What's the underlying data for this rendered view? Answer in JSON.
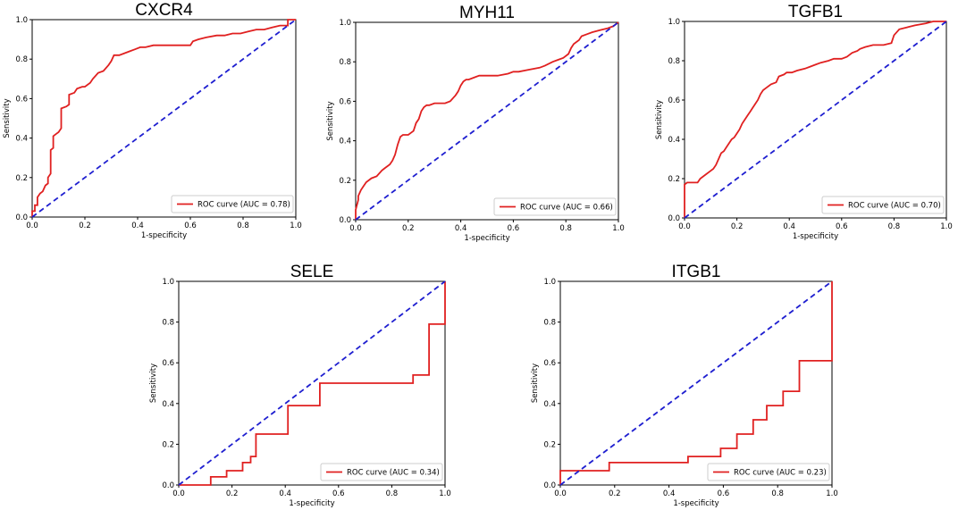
{
  "figure": {
    "diagonal_color": "#1f1fd0",
    "roc_color": "#e02020"
  },
  "chart_data": [
    {
      "type": "line",
      "title": "CXCR4",
      "xlabel": "1-specificity",
      "ylabel": "Sensitivity",
      "xlim": [
        0,
        1
      ],
      "ylim": [
        0,
        1
      ],
      "xticks": [
        "0.0",
        "0.2",
        "0.4",
        "0.6",
        "0.8",
        "1.0"
      ],
      "yticks": [
        "0.0",
        "0.2",
        "0.4",
        "0.6",
        "0.8",
        "1.0"
      ],
      "legend": "ROC curve (AUC = 0.78)",
      "legend_position": "lower-right",
      "series": [
        {
          "name": "ROC curve",
          "style": "solid",
          "x": [
            0,
            0,
            0.01,
            0.01,
            0.02,
            0.02,
            0.03,
            0.04,
            0.05,
            0.06,
            0.06,
            0.07,
            0.07,
            0.08,
            0.08,
            0.09,
            0.1,
            0.11,
            0.11,
            0.13,
            0.14,
            0.14,
            0.16,
            0.17,
            0.19,
            0.2,
            0.22,
            0.23,
            0.25,
            0.27,
            0.29,
            0.3,
            0.31,
            0.33,
            0.35,
            0.37,
            0.39,
            0.41,
            0.43,
            0.46,
            0.48,
            0.52,
            0.56,
            0.6,
            0.61,
            0.63,
            0.66,
            0.7,
            0.73,
            0.76,
            0.79,
            0.82,
            0.85,
            0.88,
            0.91,
            0.94,
            0.96,
            0.97,
            0.97,
            1.0
          ],
          "y": [
            0,
            0.03,
            0.03,
            0.06,
            0.06,
            0.1,
            0.12,
            0.13,
            0.16,
            0.17,
            0.2,
            0.22,
            0.34,
            0.35,
            0.41,
            0.42,
            0.43,
            0.45,
            0.55,
            0.56,
            0.57,
            0.62,
            0.63,
            0.65,
            0.66,
            0.66,
            0.68,
            0.7,
            0.73,
            0.74,
            0.77,
            0.79,
            0.82,
            0.82,
            0.83,
            0.84,
            0.85,
            0.86,
            0.86,
            0.87,
            0.87,
            0.87,
            0.87,
            0.87,
            0.89,
            0.9,
            0.91,
            0.92,
            0.92,
            0.93,
            0.93,
            0.94,
            0.95,
            0.95,
            0.96,
            0.97,
            0.97,
            0.97,
            1.0,
            1.0
          ]
        },
        {
          "name": "chance",
          "style": "dashed",
          "x": [
            0,
            1
          ],
          "y": [
            0,
            1
          ]
        }
      ]
    },
    {
      "type": "line",
      "title": "MYH11",
      "xlabel": "1-specificity",
      "ylabel": "Sensitivity",
      "xlim": [
        0,
        1
      ],
      "ylim": [
        0,
        1
      ],
      "xticks": [
        "0.0",
        "0.2",
        "0.4",
        "0.6",
        "0.8",
        "1.0"
      ],
      "yticks": [
        "0.0",
        "0.2",
        "0.4",
        "0.6",
        "0.8",
        "1.0"
      ],
      "legend": "ROC curve (AUC = 0.66)",
      "legend_position": "lower-right",
      "series": [
        {
          "name": "ROC curve",
          "style": "solid",
          "x": [
            0,
            0,
            0.01,
            0.01,
            0.02,
            0.03,
            0.04,
            0.06,
            0.08,
            0.1,
            0.11,
            0.13,
            0.14,
            0.15,
            0.16,
            0.17,
            0.18,
            0.2,
            0.21,
            0.22,
            0.23,
            0.24,
            0.25,
            0.26,
            0.27,
            0.28,
            0.3,
            0.32,
            0.34,
            0.36,
            0.38,
            0.39,
            0.4,
            0.41,
            0.42,
            0.43,
            0.45,
            0.47,
            0.5,
            0.54,
            0.58,
            0.6,
            0.62,
            0.66,
            0.7,
            0.72,
            0.75,
            0.77,
            0.79,
            0.81,
            0.82,
            0.83,
            0.85,
            0.86,
            0.88,
            0.9,
            0.93,
            0.96,
            0.98,
            1.0
          ],
          "y": [
            0,
            0.05,
            0.1,
            0.12,
            0.15,
            0.17,
            0.19,
            0.21,
            0.22,
            0.25,
            0.26,
            0.28,
            0.3,
            0.33,
            0.38,
            0.42,
            0.43,
            0.43,
            0.44,
            0.45,
            0.49,
            0.51,
            0.55,
            0.57,
            0.58,
            0.58,
            0.59,
            0.59,
            0.59,
            0.6,
            0.63,
            0.65,
            0.68,
            0.7,
            0.71,
            0.71,
            0.72,
            0.73,
            0.73,
            0.73,
            0.74,
            0.75,
            0.75,
            0.76,
            0.77,
            0.78,
            0.8,
            0.81,
            0.82,
            0.84,
            0.87,
            0.89,
            0.91,
            0.93,
            0.94,
            0.95,
            0.96,
            0.97,
            0.98,
            1.0
          ]
        },
        {
          "name": "chance",
          "style": "dashed",
          "x": [
            0,
            1
          ],
          "y": [
            0,
            1
          ]
        }
      ]
    },
    {
      "type": "line",
      "title": "TGFB1",
      "xlabel": "1-specificity",
      "ylabel": "Sensitivity",
      "xlim": [
        0,
        1
      ],
      "ylim": [
        0,
        1
      ],
      "xticks": [
        "0.0",
        "0.2",
        "0.4",
        "0.6",
        "0.8",
        "1.0"
      ],
      "yticks": [
        "0.0",
        "0.2",
        "0.4",
        "0.6",
        "0.8",
        "1.0"
      ],
      "legend": "ROC curve (AUC = 0.70)",
      "legend_position": "lower-right",
      "series": [
        {
          "name": "ROC curve",
          "style": "solid",
          "x": [
            0,
            0,
            0.01,
            0.05,
            0.06,
            0.08,
            0.1,
            0.11,
            0.12,
            0.13,
            0.14,
            0.15,
            0.16,
            0.17,
            0.18,
            0.19,
            0.2,
            0.21,
            0.22,
            0.23,
            0.24,
            0.25,
            0.26,
            0.27,
            0.28,
            0.29,
            0.3,
            0.31,
            0.33,
            0.35,
            0.36,
            0.38,
            0.39,
            0.41,
            0.43,
            0.46,
            0.48,
            0.5,
            0.52,
            0.55,
            0.57,
            0.6,
            0.62,
            0.64,
            0.66,
            0.67,
            0.69,
            0.72,
            0.76,
            0.79,
            0.8,
            0.82,
            0.85,
            0.88,
            0.92,
            0.95,
            1.0
          ],
          "y": [
            0,
            0.17,
            0.18,
            0.18,
            0.2,
            0.22,
            0.24,
            0.25,
            0.27,
            0.3,
            0.33,
            0.34,
            0.36,
            0.38,
            0.4,
            0.41,
            0.43,
            0.45,
            0.48,
            0.5,
            0.52,
            0.54,
            0.56,
            0.58,
            0.6,
            0.63,
            0.65,
            0.66,
            0.68,
            0.69,
            0.72,
            0.73,
            0.74,
            0.74,
            0.75,
            0.76,
            0.77,
            0.78,
            0.79,
            0.8,
            0.81,
            0.81,
            0.82,
            0.84,
            0.85,
            0.86,
            0.87,
            0.88,
            0.88,
            0.89,
            0.93,
            0.96,
            0.97,
            0.98,
            0.99,
            1.0,
            1.0
          ]
        },
        {
          "name": "chance",
          "style": "dashed",
          "x": [
            0,
            1
          ],
          "y": [
            0,
            1
          ]
        }
      ]
    },
    {
      "type": "line",
      "title": "SELE",
      "xlabel": "1-specificity",
      "ylabel": "Sensitivity",
      "xlim": [
        0,
        1
      ],
      "ylim": [
        0,
        1
      ],
      "xticks": [
        "0.0",
        "0.2",
        "0.4",
        "0.6",
        "0.8",
        "1.0"
      ],
      "yticks": [
        "0.0",
        "0.2",
        "0.4",
        "0.6",
        "0.8",
        "1.0"
      ],
      "legend": "ROC curve (AUC = 0.34)",
      "legend_position": "lower-right",
      "series": [
        {
          "name": "ROC curve",
          "style": "solid",
          "x": [
            0,
            0.12,
            0.12,
            0.18,
            0.18,
            0.24,
            0.24,
            0.27,
            0.27,
            0.29,
            0.29,
            0.41,
            0.41,
            0.53,
            0.53,
            0.88,
            0.88,
            0.94,
            0.94,
            1.0,
            1.0
          ],
          "y": [
            0,
            0,
            0.04,
            0.04,
            0.07,
            0.07,
            0.11,
            0.11,
            0.14,
            0.14,
            0.25,
            0.25,
            0.39,
            0.39,
            0.5,
            0.5,
            0.54,
            0.54,
            0.79,
            0.79,
            1.0
          ]
        },
        {
          "name": "chance",
          "style": "dashed",
          "x": [
            0,
            1
          ],
          "y": [
            0,
            1
          ]
        }
      ]
    },
    {
      "type": "line",
      "title": "ITGB1",
      "xlabel": "1-specificity",
      "ylabel": "Sensitivity",
      "xlim": [
        0,
        1
      ],
      "ylim": [
        0,
        1
      ],
      "xticks": [
        "0.0",
        "0.2",
        "0.4",
        "0.6",
        "0.8",
        "1.0"
      ],
      "yticks": [
        "0.0",
        "0.2",
        "0.4",
        "0.6",
        "0.8",
        "1.0"
      ],
      "legend": "ROC curve (AUC = 0.23)",
      "legend_position": "lower-right",
      "series": [
        {
          "name": "ROC curve",
          "style": "solid",
          "x": [
            0,
            0,
            0.18,
            0.18,
            0.47,
            0.47,
            0.59,
            0.59,
            0.65,
            0.65,
            0.71,
            0.71,
            0.76,
            0.76,
            0.82,
            0.82,
            0.88,
            0.88,
            1.0,
            1.0
          ],
          "y": [
            0,
            0.07,
            0.07,
            0.11,
            0.11,
            0.14,
            0.14,
            0.18,
            0.18,
            0.25,
            0.25,
            0.32,
            0.32,
            0.39,
            0.39,
            0.46,
            0.46,
            0.61,
            0.61,
            1.0
          ]
        },
        {
          "name": "chance",
          "style": "dashed",
          "x": [
            0,
            1
          ],
          "y": [
            0,
            1
          ]
        }
      ]
    }
  ]
}
